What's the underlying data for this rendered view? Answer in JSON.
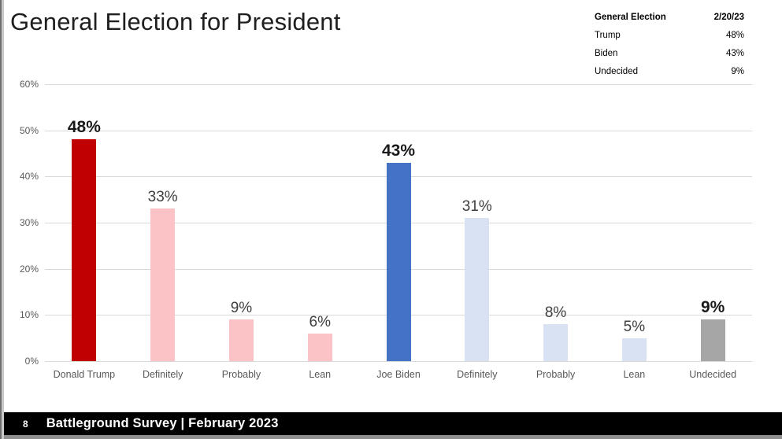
{
  "title": "General Election for President",
  "summary_table": {
    "header": {
      "label": "General Election",
      "value": "2/20/23"
    },
    "rows": [
      {
        "label": "Trump",
        "value": "48%"
      },
      {
        "label": "Biden",
        "value": "43%"
      },
      {
        "label": "Undecided",
        "value": "9%"
      }
    ]
  },
  "chart_data": {
    "type": "bar",
    "title": "General Election for President",
    "categories": [
      "Donald Trump",
      "Definitely",
      "Probably",
      "Lean",
      "Joe Biden",
      "Definitely",
      "Probably",
      "Lean",
      "Undecided"
    ],
    "values": [
      48,
      33,
      9,
      6,
      43,
      31,
      8,
      5,
      9
    ],
    "labels": [
      "48%",
      "33%",
      "9%",
      "6%",
      "43%",
      "31%",
      "8%",
      "5%",
      "9%"
    ],
    "emphasis": [
      true,
      false,
      false,
      false,
      true,
      false,
      false,
      false,
      true
    ],
    "colors": [
      "#C00000",
      "#FBC3C6",
      "#FBC3C6",
      "#FBC3C6",
      "#4472C4",
      "#D9E2F3",
      "#D9E2F3",
      "#D9E2F3",
      "#A6A6A6"
    ],
    "yticks": [
      "60%",
      "50%",
      "40%",
      "30%",
      "20%",
      "10%",
      "0%"
    ],
    "ylim": [
      0,
      60
    ],
    "grid": true,
    "legend": "none"
  },
  "footer": {
    "page_number": "8",
    "text": "Battleground Survey | February 2023"
  }
}
